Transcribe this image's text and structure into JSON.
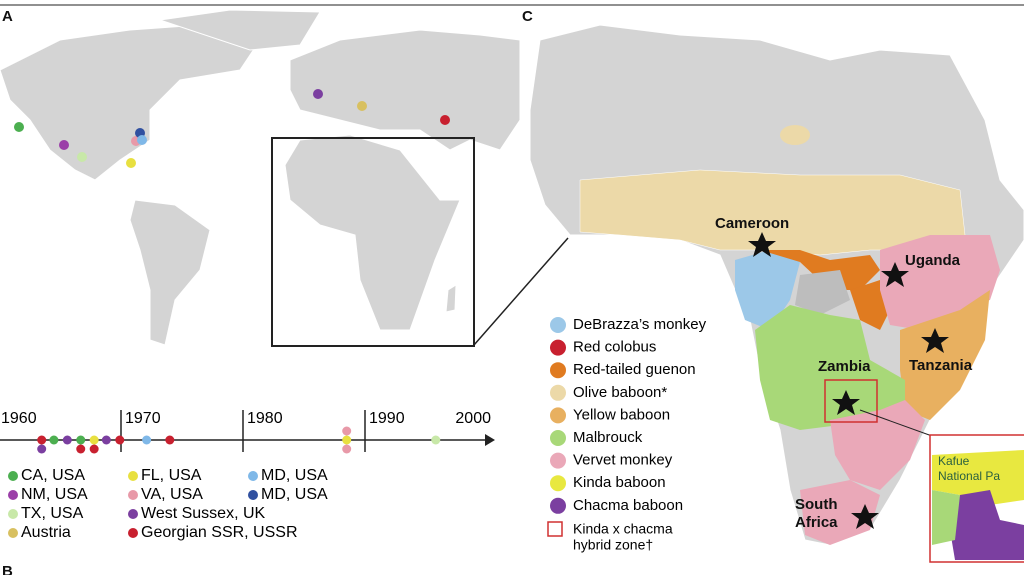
{
  "panels": {
    "a": "A",
    "c": "C",
    "b": "B"
  },
  "timeline": {
    "ticks": [
      1960,
      1970,
      1980,
      1990,
      2000
    ],
    "events": [
      {
        "year": 1963.5,
        "color": "#c8202f"
      },
      {
        "year": 1963.5,
        "color": "#7b3fa0"
      },
      {
        "year": 1964.5,
        "color": "#4caf50"
      },
      {
        "year": 1965.6,
        "color": "#7b3fa0"
      },
      {
        "year": 1966.7,
        "color": "#4caf50"
      },
      {
        "year": 1966.7,
        "color": "#c8202f"
      },
      {
        "year": 1967.8,
        "color": "#e8e040"
      },
      {
        "year": 1967.8,
        "color": "#c8202f"
      },
      {
        "year": 1968.8,
        "color": "#7b3fa0"
      },
      {
        "year": 1969.9,
        "color": "#c8202f"
      },
      {
        "year": 1972.1,
        "color": "#7fb8e8"
      },
      {
        "year": 1974,
        "color": "#c8202f"
      },
      {
        "year": 1988.5,
        "color": "#e8e040"
      },
      {
        "year": 1988.5,
        "color": "#e899a8"
      },
      {
        "year": 1988.5,
        "color": "#e899a8"
      },
      {
        "year": 1995.8,
        "color": "#c8e8a8"
      }
    ]
  },
  "legend_a": [
    {
      "label": "CA, USA",
      "color": "#4caf50"
    },
    {
      "label": "NM, USA",
      "color": "#9b3fa8"
    },
    {
      "label": "TX, USA",
      "color": "#c8e8a8"
    },
    {
      "label": "Austria",
      "color": "#d8c060"
    },
    {
      "label": "FL, USA",
      "color": "#e8e040"
    },
    {
      "label": "VA, USA",
      "color": "#e899a8"
    },
    {
      "label": "West Sussex, UK",
      "color": "#7b3fa0"
    },
    {
      "label": "Georgian SSR, USSR",
      "color": "#c8202f"
    },
    {
      "label": "MD, USA",
      "color": "#7fb8e8"
    },
    {
      "label": "MD, USA",
      "color": "#3050a0"
    }
  ],
  "legend_c": [
    {
      "label": "DeBrazza’s monkey",
      "color": "#9cc8e8"
    },
    {
      "label": "Red colobus",
      "color": "#c8202f"
    },
    {
      "label": "Red-tailed guenon",
      "color": "#e07b20"
    },
    {
      "label": "Olive baboon*",
      "color": "#ecd9a8"
    },
    {
      "label": "Yellow baboon",
      "color": "#e8b060"
    },
    {
      "label": "Malbrouck",
      "color": "#a8d878"
    },
    {
      "label": "Vervet monkey",
      "color": "#eaa8b8"
    },
    {
      "label": "Kinda baboon",
      "color": "#e8e840"
    },
    {
      "label": "Chacma baboon",
      "color": "#7b3fa0"
    }
  ],
  "hybrid_zone": [
    "Kinda x chacma",
    "hybrid zone†"
  ],
  "map_labels": {
    "cameroon": "Cameroon",
    "uganda": "Uganda",
    "zambia": "Zambia",
    "tanzania": "Tanzania",
    "south_africa": [
      "South",
      "Africa"
    ]
  },
  "inset_label": [
    "Kafue",
    "National Pa"
  ]
}
